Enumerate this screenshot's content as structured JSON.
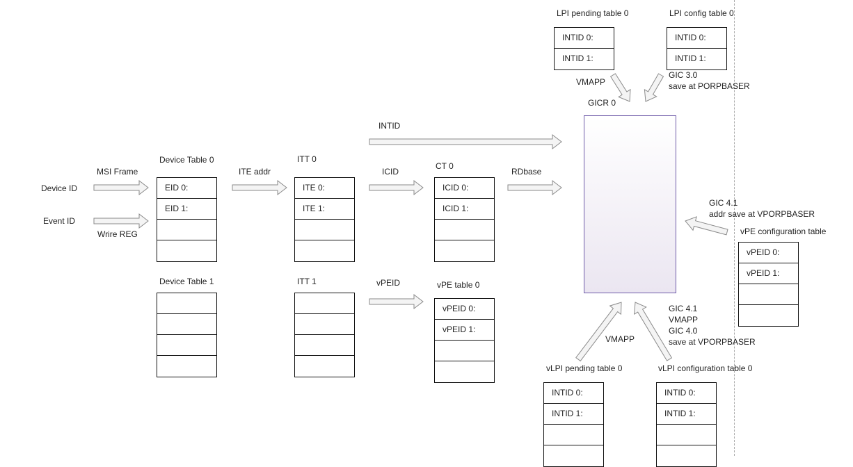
{
  "labels": {
    "device_id": "Device ID",
    "event_id": "Event ID",
    "msi_frame": "MSI Frame",
    "wrire_reg": "Wrire REG",
    "device_table_0": "Device Table 0",
    "device_table_1": "Device Table 1",
    "ite_addr": "ITE addr",
    "itt_0": "ITT 0",
    "itt_1": "ITT 1",
    "intid": "INTID",
    "icid": "ICID",
    "ct_0": "CT 0",
    "rdbase": "RDbase",
    "vpeid": "vPEID",
    "vpe_table_0": "vPE table 0",
    "gicr_0": "GICR 0",
    "lpi_pending_table_0": "LPI pending table 0",
    "lpi_config_table_0": "LPI config table 0",
    "vmapp_top": "VMAPP",
    "gic30": "GIC 3.0",
    "save_porpbaser": "save at PORPBASER",
    "gic41_right": "GIC 4.1",
    "addr_save_vporpbaser": "addr save at VPORPBASER",
    "vpe_configuration_table": "vPE configuration table",
    "gic41_bottom": "GIC 4.1",
    "vmapp_bottom_right": "VMAPP",
    "gic40": "GIC 4.0",
    "save_vporpbaser": "save at VPORPBASER",
    "vmapp_bottom": "VMAPP",
    "vlpi_pending_table_0": "vLPI pending table 0",
    "vlpi_configuration_table_0": "vLPI configuration table 0"
  },
  "tables": {
    "device_table_0": [
      "EID 0:",
      "EID 1:",
      "",
      ""
    ],
    "device_table_1": [
      "",
      "",
      "",
      ""
    ],
    "itt_0": [
      "ITE 0:",
      "ITE 1:",
      "",
      ""
    ],
    "itt_1": [
      "",
      "",
      "",
      ""
    ],
    "ct_0": [
      "ICID 0:",
      "ICID 1:",
      "",
      ""
    ],
    "vpe_table_0": [
      "vPEID 0:",
      "vPEID 1:",
      "",
      ""
    ],
    "lpi_pending_table_0": [
      "INTID 0:",
      "INTID 1:"
    ],
    "lpi_config_table_0": [
      "INTID 0:",
      "INTID 1:"
    ],
    "vpe_configuration_table": [
      "vPEID 0:",
      "vPEID 1:",
      "",
      ""
    ],
    "vlpi_pending_table_0": [
      "INTID 0:",
      "INTID 1:",
      "",
      ""
    ],
    "vlpi_configuration_table_0": [
      "INTID 0:",
      "INTID 1:",
      "",
      ""
    ]
  },
  "colors": {
    "arrow_fill": "#f4f4f4",
    "arrow_stroke": "#8a8a8a",
    "gicr_border": "#6d5aa8",
    "gicr_fill": "#ebe6f1"
  }
}
